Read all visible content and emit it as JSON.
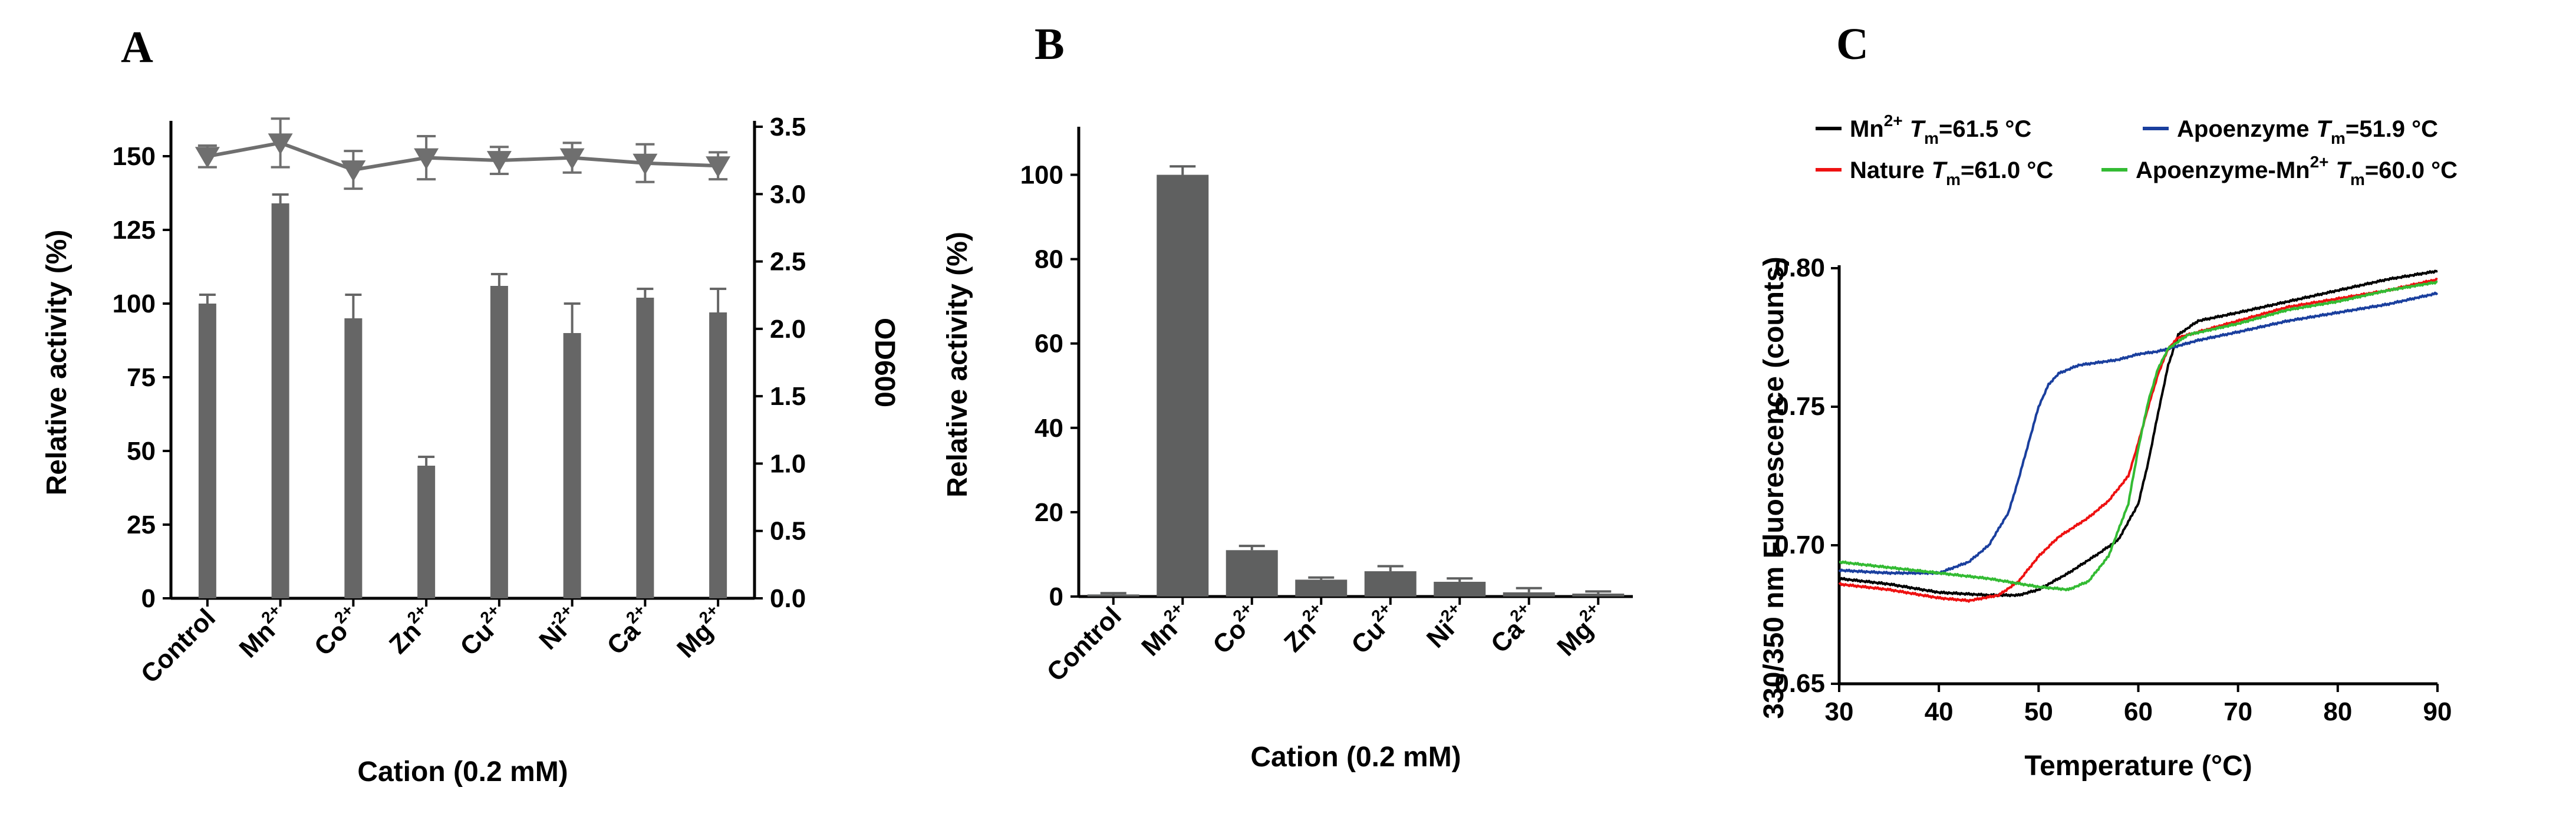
{
  "panels": {
    "a": "A",
    "b": "B",
    "c": "C"
  },
  "chart_data": [
    {
      "type": "bar",
      "panel": "A",
      "categories": [
        "Control",
        "Mn",
        "Co",
        "Zn",
        "Cu",
        "Ni",
        "Ca",
        "Mg"
      ],
      "category_superscripts": [
        "",
        "2+",
        "2+",
        "2+",
        "2+",
        "2+",
        "2+",
        "2+"
      ],
      "xlabel": "Cation (0.2 mM)",
      "ylabel": "Relative activity (%)",
      "ylim": [
        0,
        160
      ],
      "yticks": [
        "0",
        "25",
        "50",
        "75",
        "100",
        "125",
        "150"
      ],
      "series": [
        {
          "axis": "left",
          "values": [
            100,
            134,
            95,
            45,
            106,
            90,
            102,
            97
          ],
          "errors": [
            3,
            3,
            8,
            3,
            4,
            10,
            3,
            8
          ]
        }
      ],
      "y2label": "OD600",
      "y2lim": [
        0,
        3.5
      ],
      "y2ticks": [
        "0.0",
        "0.5",
        "1.0",
        "1.5",
        "2.0",
        "2.5",
        "3.0",
        "3.5"
      ],
      "line_series": {
        "axis": "right",
        "marker": "triangle-down",
        "values": [
          3.28,
          3.38,
          3.18,
          3.27,
          3.25,
          3.27,
          3.23,
          3.21
        ],
        "errors": [
          0.08,
          0.18,
          0.14,
          0.16,
          0.1,
          0.11,
          0.14,
          0.1
        ]
      },
      "colors": {
        "bar": "#666666",
        "line": "#6f6f6f"
      }
    },
    {
      "type": "bar",
      "panel": "B",
      "categories": [
        "Control",
        "Mn",
        "Co",
        "Zn",
        "Cu",
        "Ni",
        "Ca",
        "Mg"
      ],
      "category_superscripts": [
        "",
        "2+",
        "2+",
        "2+",
        "2+",
        "2+",
        "2+",
        "2+"
      ],
      "xlabel": "Cation (0.2 mM)",
      "ylabel": "Relative activity (%)",
      "ylim": [
        0,
        110
      ],
      "yticks": [
        "0",
        "20",
        "40",
        "60",
        "80",
        "100"
      ],
      "series": [
        {
          "values": [
            0.5,
            100,
            11,
            4,
            6,
            3.5,
            1,
            0.7
          ],
          "errors": [
            0.3,
            2,
            1,
            0.5,
            1.2,
            0.8,
            1,
            0.5
          ]
        }
      ],
      "colors": {
        "bar": "#5f6060"
      }
    },
    {
      "type": "line",
      "panel": "C",
      "xlabel": "Temperature (°C)",
      "ylabel": "330/350 nm Fluorescence (counts)",
      "xlim": [
        30,
        90
      ],
      "ylim": [
        0.65,
        0.8
      ],
      "xticks": [
        "30",
        "40",
        "50",
        "60",
        "70",
        "80",
        "90"
      ],
      "yticks": [
        "0.65",
        "0.70",
        "0.75",
        "0.80"
      ],
      "legend_placement": "top",
      "series": [
        {
          "legend_label": "Mn",
          "legend_sup": "2+",
          "tm_label": "T",
          "tm_sub": "m",
          "tm_value": "=61.5 °C",
          "color": "#000000",
          "points": [
            [
              30,
              0.688
            ],
            [
              35,
              0.686
            ],
            [
              40,
              0.683
            ],
            [
              45,
              0.682
            ],
            [
              48,
              0.682
            ],
            [
              50,
              0.684
            ],
            [
              53,
              0.69
            ],
            [
              56,
              0.697
            ],
            [
              58,
              0.702
            ],
            [
              60,
              0.715
            ],
            [
              61,
              0.73
            ],
            [
              62,
              0.748
            ],
            [
              63,
              0.765
            ],
            [
              64,
              0.776
            ],
            [
              66,
              0.781
            ],
            [
              70,
              0.784
            ],
            [
              75,
              0.788
            ],
            [
              80,
              0.792
            ],
            [
              85,
              0.796
            ],
            [
              90,
              0.799
            ]
          ]
        },
        {
          "legend_label": "Nature",
          "legend_sup": "",
          "tm_label": "T",
          "tm_sub": "m",
          "tm_value": "=61.0 °C",
          "color": "#ee1111",
          "points": [
            [
              30,
              0.686
            ],
            [
              35,
              0.684
            ],
            [
              40,
              0.681
            ],
            [
              43,
              0.68
            ],
            [
              46,
              0.682
            ],
            [
              48,
              0.687
            ],
            [
              50,
              0.696
            ],
            [
              52,
              0.703
            ],
            [
              55,
              0.71
            ],
            [
              57,
              0.716
            ],
            [
              59,
              0.725
            ],
            [
              60,
              0.737
            ],
            [
              61,
              0.75
            ],
            [
              62,
              0.762
            ],
            [
              63,
              0.771
            ],
            [
              64,
              0.775
            ],
            [
              67,
              0.778
            ],
            [
              70,
              0.781
            ],
            [
              75,
              0.786
            ],
            [
              80,
              0.789
            ],
            [
              85,
              0.792
            ],
            [
              90,
              0.796
            ]
          ]
        },
        {
          "legend_label": "Apoenzyme",
          "legend_sup": "",
          "tm_label": "T",
          "tm_sub": "m",
          "tm_value": "=51.9 °C",
          "color": "#1a3f9e",
          "points": [
            [
              30,
              0.691
            ],
            [
              35,
              0.69
            ],
            [
              40,
              0.69
            ],
            [
              43,
              0.694
            ],
            [
              45,
              0.7
            ],
            [
              47,
              0.712
            ],
            [
              48,
              0.724
            ],
            [
              49,
              0.737
            ],
            [
              50,
              0.75
            ],
            [
              51,
              0.758
            ],
            [
              52,
              0.762
            ],
            [
              54,
              0.765
            ],
            [
              56,
              0.766
            ],
            [
              58,
              0.767
            ],
            [
              60,
              0.769
            ],
            [
              62,
              0.77
            ],
            [
              64,
              0.772
            ],
            [
              66,
              0.774
            ],
            [
              70,
              0.777
            ],
            [
              75,
              0.781
            ],
            [
              80,
              0.784
            ],
            [
              85,
              0.787
            ],
            [
              90,
              0.791
            ]
          ]
        },
        {
          "legend_label": "Apoenzyme-Mn",
          "legend_sup": "2+",
          "tm_label": "T",
          "tm_sub": "m",
          "tm_value": "=60.0 °C",
          "color": "#33bb33",
          "points": [
            [
              30,
              0.694
            ],
            [
              35,
              0.692
            ],
            [
              40,
              0.69
            ],
            [
              45,
              0.688
            ],
            [
              50,
              0.685
            ],
            [
              53,
              0.684
            ],
            [
              55,
              0.687
            ],
            [
              57,
              0.696
            ],
            [
              59,
              0.715
            ],
            [
              60,
              0.735
            ],
            [
              61,
              0.752
            ],
            [
              62,
              0.764
            ],
            [
              63,
              0.771
            ],
            [
              65,
              0.776
            ],
            [
              70,
              0.78
            ],
            [
              75,
              0.785
            ],
            [
              80,
              0.788
            ],
            [
              85,
              0.792
            ],
            [
              90,
              0.795
            ]
          ]
        }
      ]
    }
  ]
}
